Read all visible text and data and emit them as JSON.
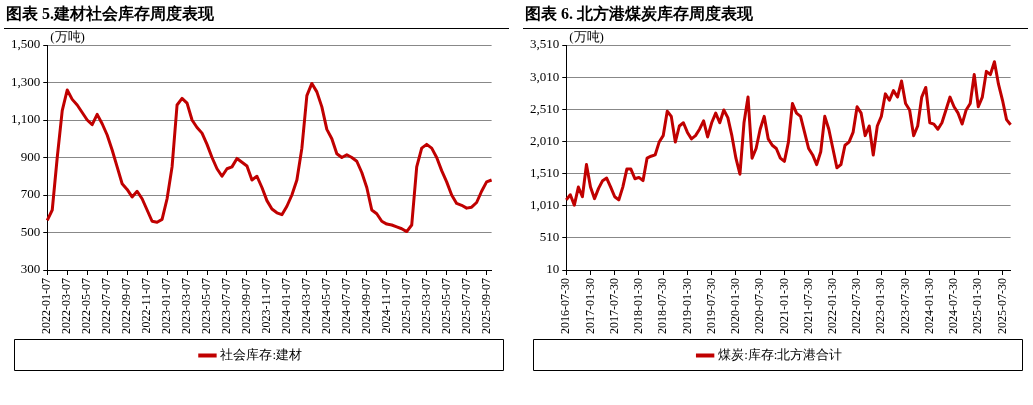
{
  "chart_data": [
    {
      "type": "line",
      "title": "图表 5.建材社会库存周度表现",
      "ylabel": "(万吨)",
      "grid": "y",
      "legend": "bottom",
      "marker": "none",
      "line_style": "solid",
      "ylim": [
        300,
        1500
      ],
      "yticks": [
        300,
        500,
        700,
        {
          "value": 900,
          "label": "900"
        },
        {
          "value": 1100,
          "label": "1,100"
        },
        {
          "value": 1300,
          "label": "1,300"
        },
        {
          "value": 1500,
          "label": "1,500"
        }
      ],
      "categories": [
        "2022-01-07",
        null,
        null,
        null,
        "2022-03-07",
        null,
        null,
        null,
        "2022-05-07",
        null,
        null,
        null,
        "2022-07-07",
        null,
        null,
        null,
        "2022-09-07",
        null,
        null,
        null,
        "2022-11-07",
        null,
        null,
        null,
        "2023-01-07",
        null,
        null,
        null,
        "2023-03-07",
        null,
        null,
        null,
        "2023-05-07",
        null,
        null,
        null,
        "2023-07-07",
        null,
        null,
        null,
        "2023-09-07",
        null,
        null,
        null,
        "2023-11-07",
        null,
        null,
        null,
        "2024-01-07",
        null,
        null,
        null,
        "2024-03-07",
        null,
        null,
        null,
        "2024-05-07",
        null,
        null,
        null,
        "2024-07-07",
        null,
        null,
        null,
        "2024-09-07",
        null,
        null,
        null,
        "2024-11-07",
        null,
        null,
        null,
        "2025-01-07",
        null,
        null,
        null,
        "2025-03-07",
        null,
        null,
        null,
        "2025-05-07",
        null,
        null,
        null,
        "2025-07-07",
        null,
        null,
        null,
        "2025-09-07",
        null
      ],
      "series": [
        {
          "name": "社会库存:建材",
          "color": "#c00000",
          "values": [
            565,
            620,
            900,
            1150,
            1260,
            1210,
            1180,
            1140,
            1100,
            1075,
            1130,
            1080,
            1020,
            940,
            850,
            760,
            730,
            690,
            720,
            680,
            620,
            560,
            555,
            570,
            680,
            850,
            1180,
            1215,
            1190,
            1100,
            1060,
            1030,
            970,
            900,
            840,
            800,
            840,
            850,
            895,
            875,
            855,
            780,
            800,
            740,
            670,
            625,
            605,
            595,
            640,
            700,
            780,
            950,
            1230,
            1295,
            1250,
            1170,
            1050,
            1000,
            920,
            900,
            915,
            900,
            880,
            820,
            740,
            620,
            600,
            560,
            545,
            540,
            530,
            520,
            505,
            540,
            850,
            950,
            970,
            950,
            900,
            830,
            770,
            700,
            655,
            645,
            630,
            635,
            660,
            720,
            770,
            780
          ]
        }
      ]
    },
    {
      "type": "line",
      "title": "图表 6. 北方港煤炭库存周度表现",
      "ylabel": "(万吨)",
      "grid": "y",
      "legend": "bottom",
      "marker": "none",
      "line_style": "solid",
      "ylim": [
        10,
        3510
      ],
      "yticks": [
        10,
        510,
        {
          "value": 1010,
          "label": "1,010"
        },
        {
          "value": 1510,
          "label": "1,510"
        },
        {
          "value": 2010,
          "label": "2,010"
        },
        {
          "value": 2510,
          "label": "2,510"
        },
        {
          "value": 3010,
          "label": "3,010"
        },
        {
          "value": 3510,
          "label": "3,510"
        }
      ],
      "categories": [
        "2016-07-30",
        null,
        null,
        null,
        null,
        null,
        "2017-01-30",
        null,
        null,
        null,
        null,
        null,
        "2017-07-30",
        null,
        null,
        null,
        null,
        null,
        "2018-01-30",
        null,
        null,
        null,
        null,
        null,
        "2018-07-30",
        null,
        null,
        null,
        null,
        null,
        "2019-01-30",
        null,
        null,
        null,
        null,
        null,
        "2019-07-30",
        null,
        null,
        null,
        null,
        null,
        "2020-01-30",
        null,
        null,
        null,
        null,
        null,
        "2020-07-30",
        null,
        null,
        null,
        null,
        null,
        "2021-01-30",
        null,
        null,
        null,
        null,
        null,
        "2021-07-30",
        null,
        null,
        null,
        null,
        null,
        "2022-01-30",
        null,
        null,
        null,
        null,
        null,
        "2022-07-30",
        null,
        null,
        null,
        null,
        null,
        "2023-01-30",
        null,
        null,
        null,
        null,
        null,
        "2023-07-30",
        null,
        null,
        null,
        null,
        null,
        "2024-01-30",
        null,
        null,
        null,
        null,
        null,
        "2024-07-30",
        null,
        null,
        null,
        null,
        null,
        "2025-01-30",
        null,
        null,
        null,
        null,
        null,
        "2025-07-30",
        null,
        null
      ],
      "series": [
        {
          "name": "煤炭:库存:北方港合计",
          "color": "#c00000",
          "values": [
            1100,
            1180,
            1020,
            1300,
            1150,
            1650,
            1300,
            1120,
            1280,
            1400,
            1440,
            1300,
            1150,
            1100,
            1300,
            1580,
            1580,
            1430,
            1450,
            1400,
            1750,
            1780,
            1800,
            2000,
            2100,
            2480,
            2400,
            2000,
            2250,
            2300,
            2150,
            2050,
            2100,
            2200,
            2330,
            2080,
            2300,
            2450,
            2300,
            2500,
            2380,
            2100,
            1750,
            1500,
            2300,
            2700,
            1750,
            1900,
            2200,
            2400,
            2050,
            1950,
            1900,
            1750,
            1700,
            2000,
            2600,
            2450,
            2400,
            2150,
            1900,
            1800,
            1650,
            1850,
            2400,
            2200,
            1900,
            1600,
            1650,
            1950,
            2000,
            2150,
            2550,
            2450,
            2100,
            2250,
            1800,
            2250,
            2400,
            2750,
            2650,
            2800,
            2700,
            2950,
            2600,
            2500,
            2100,
            2250,
            2700,
            2850,
            2300,
            2280,
            2200,
            2300,
            2500,
            2700,
            2550,
            2450,
            2280,
            2500,
            2600,
            3050,
            2550,
            2700,
            3100,
            3050,
            3250,
            2900,
            2650,
            2350,
            2270
          ]
        }
      ]
    }
  ]
}
